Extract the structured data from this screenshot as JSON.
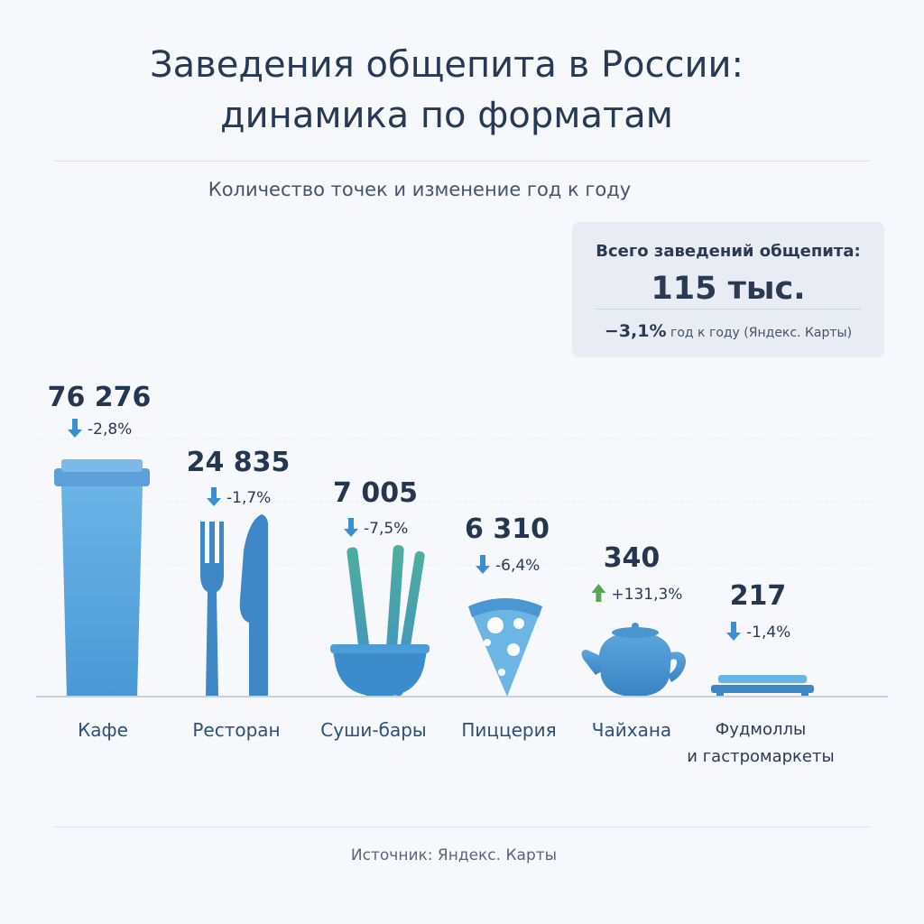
{
  "header": {
    "title_line1": "Заведения общепита в России:",
    "title_line2": "динамика по форматам",
    "subtitle": "Количество точек и изменение год к году"
  },
  "total": {
    "label": "Всего заведений общепита:",
    "value": "115 тыс.",
    "change_value": "−3,1%",
    "change_note": "год к году (Яндекс. Карты)"
  },
  "source": "Источник: Яндекс. Карты",
  "colors": {
    "bar": "#4e9dd8",
    "bar_light": "#64b2e2",
    "down_arrow": "#3a8fd0",
    "up_arrow": "#5aa55a",
    "text": "#253650"
  },
  "chart_data": {
    "type": "bar",
    "categories": [
      "Кафе",
      "Ресторан",
      "Суши-бары",
      "Пиццерия",
      "Чайхана",
      "Фудмоллы и гастромаркеты"
    ],
    "value_labels": [
      "76 276",
      "24 835",
      "7 005",
      "6 310",
      "340",
      "217"
    ],
    "values": [
      76276,
      24835,
      7005,
      6310,
      340,
      217
    ],
    "change_labels": [
      "-2,8%",
      "-1,7%",
      "-7,5%",
      "-6,4%",
      "+131,3%",
      "-1,4%"
    ],
    "change_direction": [
      "down",
      "down",
      "down",
      "down",
      "up",
      "down"
    ],
    "icons": [
      "cup-icon",
      "fork-knife-icon",
      "sushi-bowl-icon",
      "pizza-slice-icon",
      "teapot-icon",
      "tray-icon"
    ]
  }
}
